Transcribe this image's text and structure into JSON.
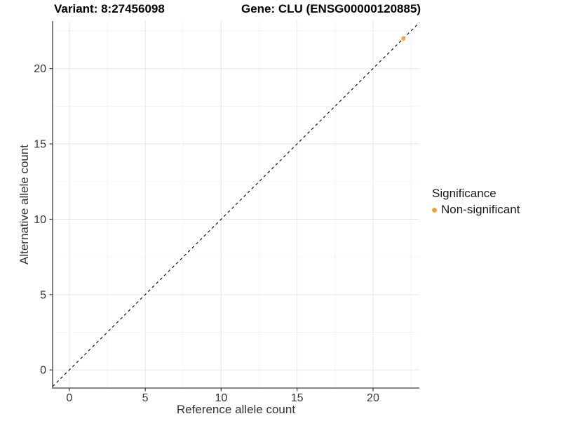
{
  "titles": {
    "variant": "Variant: 8:27456098",
    "gene": "Gene: CLU (ENSG00000120885)"
  },
  "legend": {
    "title": "Significance",
    "items": [
      {
        "label": "Non-significant",
        "color": "#FFA02E"
      }
    ]
  },
  "chart_data": {
    "type": "scatter",
    "xlabel": "Reference allele count",
    "ylabel": "Alternative allele count",
    "xlim": [
      -1.1,
      23.05
    ],
    "ylim": [
      -1.2,
      23.15
    ],
    "x_major_ticks": [
      0,
      5,
      10,
      15,
      20
    ],
    "y_major_ticks": [
      0,
      5,
      10,
      15,
      20
    ],
    "x_minor_gridlines": [
      2.5,
      7.5,
      12.5,
      17.5,
      22.5
    ],
    "y_minor_gridlines": [
      2.5,
      7.5,
      12.5,
      17.5,
      22.5
    ],
    "grid": true,
    "legend_position": "right",
    "series": [
      {
        "name": "Non-significant",
        "color": "#FFA02E",
        "points": [
          {
            "x": 22,
            "y": 22
          }
        ]
      }
    ],
    "reference_line": {
      "kind": "identity",
      "equation": "y = x",
      "style": "dashed",
      "color": "#000000"
    },
    "style_colors": {
      "major_grid": "#e6e6e6",
      "minor_grid": "#f1f1f1",
      "axis_line": "#404040",
      "tick_mark": "#333333",
      "tick_label": "#262626",
      "axis_title": "#000000"
    }
  }
}
